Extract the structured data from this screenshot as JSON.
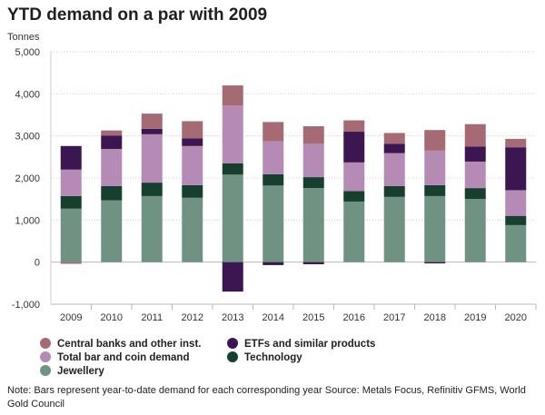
{
  "title": "YTD demand on a par with 2009",
  "unit": "Tonnes",
  "note": "Note: Bars represent year-to-date demand for each corresponding year Source: Metals Focus, Refinitiv GFMS, World Gold Council",
  "legend": [
    {
      "label": "Central banks and other inst.",
      "color": "#a66a74"
    },
    {
      "label": "ETFs and similar products",
      "color": "#3b1650"
    },
    {
      "label": "Total bar and coin demand",
      "color": "#b58ab5"
    },
    {
      "label": "Technology",
      "color": "#173f2f"
    },
    {
      "label": "Jewellery",
      "color": "#6f9283"
    }
  ],
  "chart_data": {
    "type": "bar",
    "stacked": true,
    "title": "YTD demand on a par with 2009",
    "ylabel": "Tonnes",
    "ylim": [
      -1000,
      5000
    ],
    "yticks": [
      -1000,
      0,
      1000,
      2000,
      3000,
      4000,
      5000
    ],
    "ytick_labels": [
      "-1,000",
      "0",
      "1,000",
      "2,000",
      "3,000",
      "4,000",
      "5,000"
    ],
    "grid": true,
    "legend_position": "bottom",
    "categories": [
      "2009",
      "2010",
      "2011",
      "2012",
      "2013",
      "2014",
      "2015",
      "2016",
      "2017",
      "2018",
      "2019",
      "2020"
    ],
    "series": [
      {
        "name": "Jewellery",
        "color": "#6f9283",
        "values": [
          1270,
          1470,
          1570,
          1530,
          2080,
          1820,
          1760,
          1440,
          1550,
          1570,
          1500,
          880
        ]
      },
      {
        "name": "Technology",
        "color": "#173f2f",
        "values": [
          300,
          340,
          320,
          300,
          270,
          270,
          260,
          250,
          260,
          260,
          260,
          220
        ]
      },
      {
        "name": "Total bar and coin demand",
        "color": "#b58ab5",
        "values": [
          630,
          880,
          1150,
          930,
          1370,
          780,
          800,
          680,
          780,
          820,
          630,
          610
        ]
      },
      {
        "name": "ETFs and similar products",
        "color": "#3b1650",
        "values": [
          560,
          320,
          130,
          180,
          -700,
          -70,
          -50,
          730,
          220,
          -30,
          360,
          1020
        ]
      },
      {
        "name": "Central banks and other inst.",
        "color": "#a66a74",
        "values": [
          -40,
          120,
          360,
          410,
          480,
          460,
          410,
          270,
          260,
          490,
          530,
          200
        ]
      }
    ]
  }
}
